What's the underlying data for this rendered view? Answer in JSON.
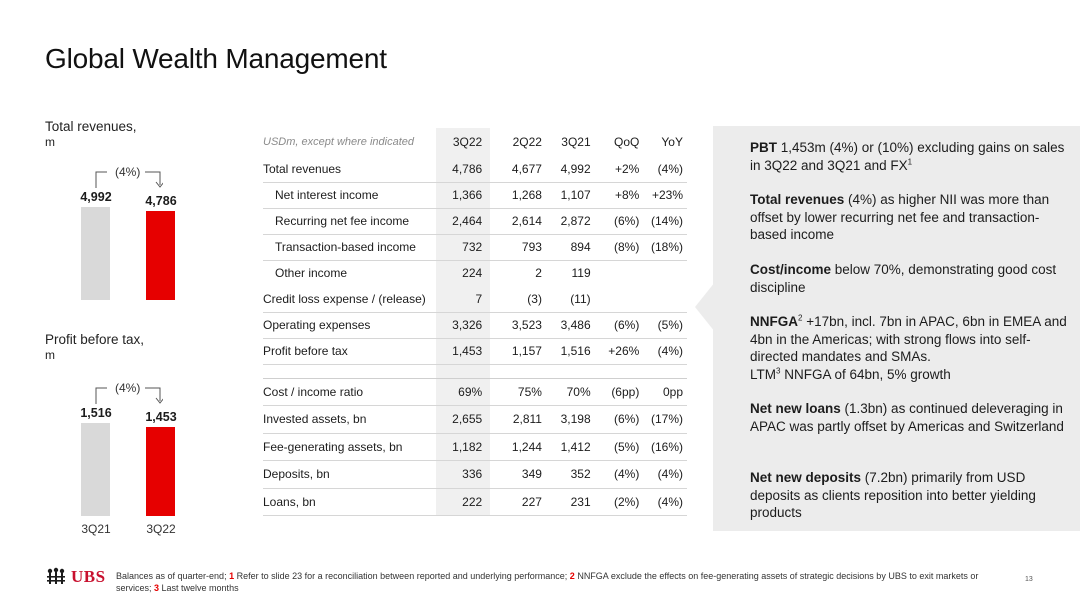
{
  "title": "Global Wealth Management",
  "revenues_chart": {
    "label": "Total revenues,",
    "unit": "m",
    "change": "(4%)",
    "bars": [
      {
        "period": "3Q21",
        "value": 4992,
        "value_label": "4,992",
        "color": "#d9d9d9"
      },
      {
        "period": "3Q22",
        "value": 4786,
        "value_label": "4,786",
        "color": "#e60000"
      }
    ]
  },
  "pbt_chart": {
    "label": "Profit before tax,",
    "unit": "m",
    "change": "(4%)",
    "bars": [
      {
        "period": "3Q21",
        "value": 1516,
        "value_label": "1,516",
        "color": "#d9d9d9"
      },
      {
        "period": "3Q22",
        "value": 1453,
        "value_label": "1,453",
        "color": "#e60000"
      }
    ]
  },
  "table": {
    "note": "USDm, except where indicated",
    "columns": [
      "3Q22",
      "2Q22",
      "3Q21",
      "QoQ",
      "YoY"
    ],
    "rows": [
      [
        "Total revenues",
        "4,786",
        "4,677",
        "4,992",
        "+2%",
        "(4%)"
      ],
      [
        "Net interest income",
        "1,366",
        "1,268",
        "1,107",
        "+8%",
        "+23%"
      ],
      [
        "Recurring net fee income",
        "2,464",
        "2,614",
        "2,872",
        "(6%)",
        "(14%)"
      ],
      [
        "Transaction-based income",
        "732",
        "793",
        "894",
        "(8%)",
        "(18%)"
      ],
      [
        "Other income",
        "224",
        "2",
        "119",
        "",
        ""
      ],
      [
        "Credit loss expense / (release)",
        "7",
        "(3)",
        "(11)",
        "",
        ""
      ],
      [
        "Operating expenses",
        "3,326",
        "3,523",
        "3,486",
        "(6%)",
        "(5%)"
      ],
      [
        "Profit before tax",
        "1,453",
        "1,157",
        "1,516",
        "+26%",
        "(4%)"
      ],
      [
        "Cost / income ratio",
        "69%",
        "75%",
        "70%",
        "(6pp)",
        "0pp"
      ],
      [
        "Invested assets, bn",
        "2,655",
        "2,811",
        "3,198",
        "(6%)",
        "(17%)"
      ],
      [
        "Fee-generating assets, bn",
        "1,182",
        "1,244",
        "1,412",
        "(5%)",
        "(16%)"
      ],
      [
        "Deposits, bn",
        "336",
        "349",
        "352",
        "(4%)",
        "(4%)"
      ],
      [
        "Loans, bn",
        "222",
        "227",
        "231",
        "(2%)",
        "(4%)"
      ]
    ]
  },
  "panel": {
    "pbt": {
      "bold": "PBT",
      "text": " 1,453m (4%) or (10%) excluding gains on sales in 3Q22 and 3Q21 and FX",
      "sup": "1"
    },
    "revenues": {
      "bold": "Total revenues",
      "text": " (4%) as higher NII was more than offset by lower recurring net fee and transaction-based income"
    },
    "cost": {
      "bold": "Cost/income",
      "text": " below 70%, demonstrating good cost discipline"
    },
    "nnfga": {
      "bold": "NNFGA",
      "sup": "2",
      "text": " +17bn, incl. 7bn in APAC, 6bn in EMEA and 4bn in the Americas; with strong flows into self-directed mandates and SMAs.",
      "ltm": "LTM",
      "ltm_sup": "3",
      "ltm_text": " NNFGA of 64bn, 5% growth"
    },
    "loans": {
      "bold": "Net new loans",
      "text": " (1.3bn) as continued deleveraging in APAC was partly offset by Americas and Switzerland"
    },
    "deposits": {
      "bold": "Net new deposits",
      "text": " (7.2bn) primarily from USD deposits as clients reposition into better yielding products"
    }
  },
  "footer": {
    "logo": "UBS",
    "note_a": "Balances as of quarter-end; ",
    "n1": "1",
    "note_b": " Refer to slide 23 for a reconciliation between reported and underlying performance; ",
    "n2": "2",
    "note_c": " NNFGA exclude the effects on fee-generating assets of strategic decisions by UBS to exit markets or services; ",
    "n3": "3",
    "note_d": " Last twelve months",
    "page": "13"
  }
}
